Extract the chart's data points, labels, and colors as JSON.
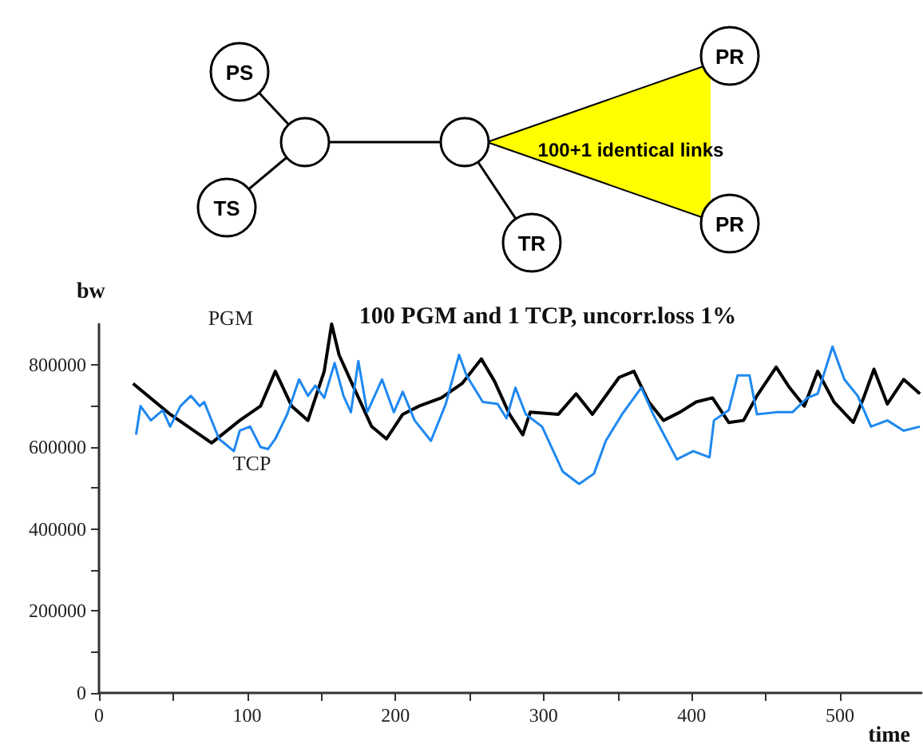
{
  "chart_data": {
    "type": "line",
    "title": "100 PGM and 1 TCP, uncorr.loss 1%",
    "xlabel": "time",
    "ylabel": "bw",
    "annotations": [
      "PS",
      "TS",
      "TR",
      "PR",
      "PR",
      "100+1 identical links"
    ],
    "series": [
      {
        "name": "PGM",
        "color": "#000000",
        "x": [
          23,
          48,
          76,
          95,
          109,
          119,
          130,
          141,
          152,
          157,
          162,
          172,
          184,
          194,
          205,
          216,
          231,
          245,
          258,
          267,
          277,
          286,
          291,
          310,
          322,
          333,
          351,
          361,
          371,
          381,
          392,
          403,
          414,
          425,
          435,
          444,
          457,
          466,
          476,
          485,
          496,
          509,
          516,
          523,
          532,
          543,
          554
        ],
        "values": [
          755000,
          680000,
          610000,
          665000,
          700000,
          785000,
          700000,
          665000,
          785000,
          900000,
          825000,
          745000,
          650000,
          620000,
          680000,
          700000,
          720000,
          755000,
          815000,
          760000,
          680000,
          630000,
          685000,
          680000,
          730000,
          680000,
          770000,
          785000,
          710000,
          665000,
          685000,
          710000,
          720000,
          660000,
          665000,
          725000,
          795000,
          745000,
          700000,
          785000,
          710000,
          660000,
          720000,
          790000,
          705000,
          765000,
          730000
        ]
      },
      {
        "name": "TCP",
        "color": "#1e88f0",
        "x": [
          25,
          28,
          35,
          43,
          48,
          55,
          62,
          68,
          71,
          81,
          91,
          95,
          102,
          109,
          114,
          119,
          127,
          135,
          141,
          146,
          152,
          159,
          165,
          170,
          175,
          181,
          191,
          199,
          205,
          213,
          224,
          234,
          243,
          248,
          259,
          269,
          275,
          281,
          288,
          299,
          313,
          324,
          334,
          342,
          353,
          366,
          374,
          390,
          401,
          412,
          415,
          425,
          431,
          439,
          444,
          457,
          468,
          478,
          485,
          495,
          503,
          512,
          521,
          532,
          543,
          554
        ],
        "values": [
          630000,
          700000,
          665000,
          690000,
          650000,
          700000,
          725000,
          700000,
          710000,
          620000,
          590000,
          640000,
          650000,
          600000,
          595000,
          620000,
          680000,
          765000,
          725000,
          750000,
          720000,
          805000,
          725000,
          685000,
          810000,
          685000,
          765000,
          685000,
          735000,
          665000,
          615000,
          705000,
          825000,
          775000,
          710000,
          705000,
          670000,
          745000,
          680000,
          650000,
          540000,
          510000,
          535000,
          615000,
          680000,
          745000,
          680000,
          570000,
          590000,
          575000,
          665000,
          690000,
          775000,
          775000,
          680000,
          685000,
          685000,
          720000,
          730000,
          845000,
          765000,
          725000,
          650000,
          665000,
          640000,
          650000
        ]
      }
    ],
    "xlim": [
      0,
      555
    ],
    "xticks": [
      0,
      {
        "value": 50,
        "label": null
      },
      100,
      {
        "value": 150,
        "label": null
      },
      200,
      {
        "value": 250,
        "label": null
      },
      300,
      {
        "value": 350,
        "label": null
      },
      400,
      {
        "value": 450,
        "label": null
      },
      500
    ],
    "ylim": [
      0,
      900000
    ],
    "yticks": [
      0,
      {
        "value": 100000,
        "label": null
      },
      200000,
      {
        "value": 300000,
        "label": null
      },
      400000,
      {
        "value": 500000,
        "label": null
      },
      600000,
      {
        "value": 700000,
        "label": null
      },
      800000
    ],
    "grid": false,
    "legend": false
  }
}
